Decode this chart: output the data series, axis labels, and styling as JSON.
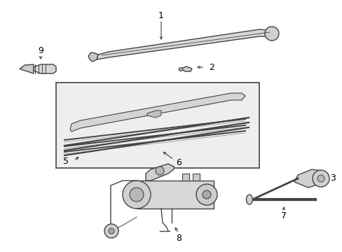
{
  "bg_color": "#ffffff",
  "line_color": "#444444",
  "box_bg": "#e8e8e8",
  "fig_width": 4.89,
  "fig_height": 3.6,
  "dpi": 100
}
